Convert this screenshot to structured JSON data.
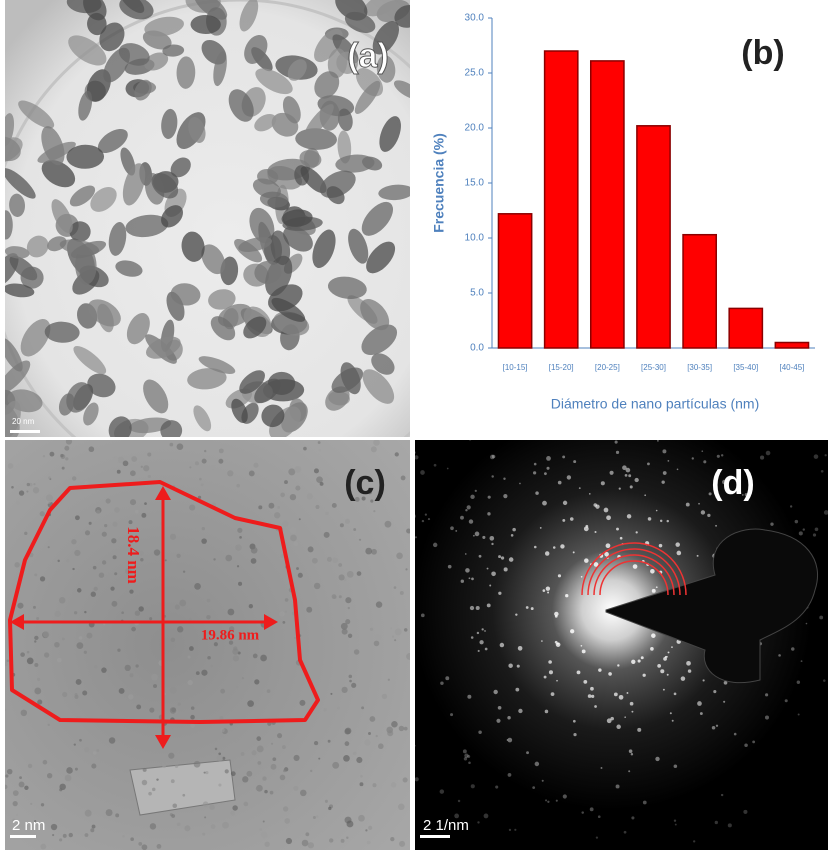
{
  "chart_data": {
    "type": "bar",
    "ylabel": "Frecuencia (%)",
    "xlabel": "Diámetro de nano partículas (nm)",
    "categories": [
      "[10-15]",
      "[15-20]",
      "[20-25]",
      "[25-30]",
      "[30-35]",
      "[35-40]",
      "[40-45]"
    ],
    "values": [
      12.2,
      27.0,
      26.1,
      20.2,
      10.3,
      3.6,
      0.5
    ],
    "color": "#ff0000",
    "ylim": [
      0,
      30
    ],
    "yticks": [
      {
        "value": 0,
        "label": "0.0"
      },
      {
        "value": 5,
        "label": "5.0"
      },
      {
        "value": 10,
        "label": "10.0"
      },
      {
        "value": 15,
        "label": "15.0"
      },
      {
        "value": 20,
        "label": "20.0"
      },
      {
        "value": 25,
        "label": "25.0"
      },
      {
        "value": 30,
        "label": "30.0"
      }
    ]
  },
  "panels": {
    "a": {
      "label": "(a)",
      "scale_bar": "20 nm"
    },
    "b": {
      "label": "(b)"
    },
    "c": {
      "label": "(c)",
      "scale_bar": "2 nm",
      "height": "18.4 nm",
      "width": "19.86 nm"
    },
    "d": {
      "label": "(d)",
      "scale_bar": "2 1/nm"
    }
  }
}
